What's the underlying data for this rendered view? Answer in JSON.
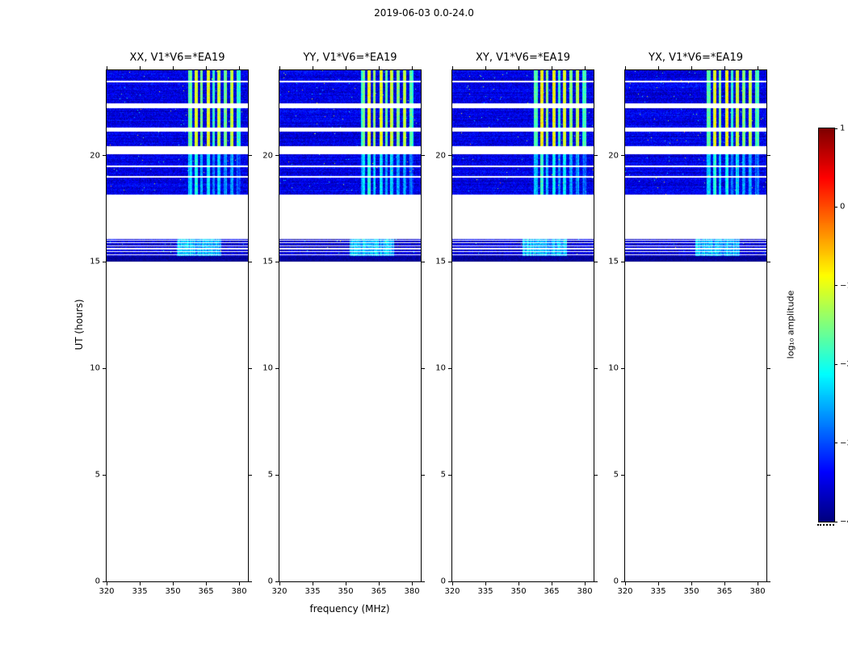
{
  "chart_data": {
    "type": "heatmap",
    "title": "2019-06-03 0.0-24.0",
    "xlabel": "frequency (MHz)",
    "ylabel": "UT (hours)",
    "xlim": [
      320,
      384
    ],
    "ylim": [
      0,
      24
    ],
    "xticks": [
      320,
      335,
      350,
      365,
      380
    ],
    "yticks": [
      0,
      5,
      10,
      15,
      20
    ],
    "panels": [
      {
        "title": "XX, V1*V6=*EA19"
      },
      {
        "title": "YY, V1*V6=*EA19"
      },
      {
        "title": "XY, V1*V6=*EA19"
      },
      {
        "title": "YX, V1*V6=*EA19"
      }
    ],
    "colorbar": {
      "label": "log₁₀ amplitude",
      "min": -4,
      "max": 1,
      "ticks": [
        1,
        0,
        -1,
        -2,
        -3,
        -4
      ],
      "tick_labels": [
        "1",
        "0",
        "−1",
        "−2",
        "−3",
        "−4"
      ],
      "colormap": "jet"
    },
    "observation_bands": [
      {
        "t_start": 15.0,
        "t_end": 16.08,
        "base_level": -3.6
      },
      {
        "t_start": 18.16,
        "t_end": 24.0,
        "base_level": -3.5
      }
    ],
    "dense_subband": {
      "t_start": 15.0,
      "t_end": 15.28,
      "base_level": -3.85
    },
    "time_gaps": [
      [
        20.05,
        20.45
      ],
      [
        21.1,
        21.32
      ],
      [
        22.2,
        22.45
      ]
    ],
    "thin_time_gaps": [
      [
        23.44,
        23.5
      ],
      [
        19.46,
        19.52
      ],
      [
        18.97,
        19.03
      ],
      [
        15.32,
        15.37
      ],
      [
        15.46,
        15.51
      ],
      [
        15.6,
        15.65
      ],
      [
        15.74,
        15.79
      ],
      [
        15.88,
        15.93
      ],
      [
        16.0,
        16.04
      ]
    ],
    "stripe_transition_hour": 20.2,
    "rfi_stripes": [
      {
        "f0": 357.0,
        "f1": 358.6,
        "level_late": -1.7,
        "level_early": -2.4
      },
      {
        "f0": 359.8,
        "f1": 361.4,
        "level_late": -0.9,
        "level_early": -1.9
      },
      {
        "f0": 362.4,
        "f1": 363.6,
        "level_late": -1.4,
        "level_early": -2.4
      },
      {
        "f0": 365.2,
        "f1": 366.8,
        "level_late": -0.95,
        "level_early": -2.2
      },
      {
        "f0": 368.0,
        "f1": 369.0,
        "level_late": -1.8,
        "level_early": -2.7
      },
      {
        "f0": 370.0,
        "f1": 371.6,
        "level_late": -1.1,
        "level_early": -2.3
      },
      {
        "f0": 373.0,
        "f1": 374.4,
        "level_late": -1.5,
        "level_early": -2.6
      },
      {
        "f0": 375.8,
        "f1": 377.4,
        "level_late": -1.2,
        "level_early": -2.6
      },
      {
        "f0": 379.0,
        "f1": 380.6,
        "level_late": -1.8,
        "level_early": -2.9
      }
    ],
    "lower_band_stripes": [
      {
        "f0": 352.0,
        "f1": 372.0,
        "level": -2.5
      }
    ]
  }
}
